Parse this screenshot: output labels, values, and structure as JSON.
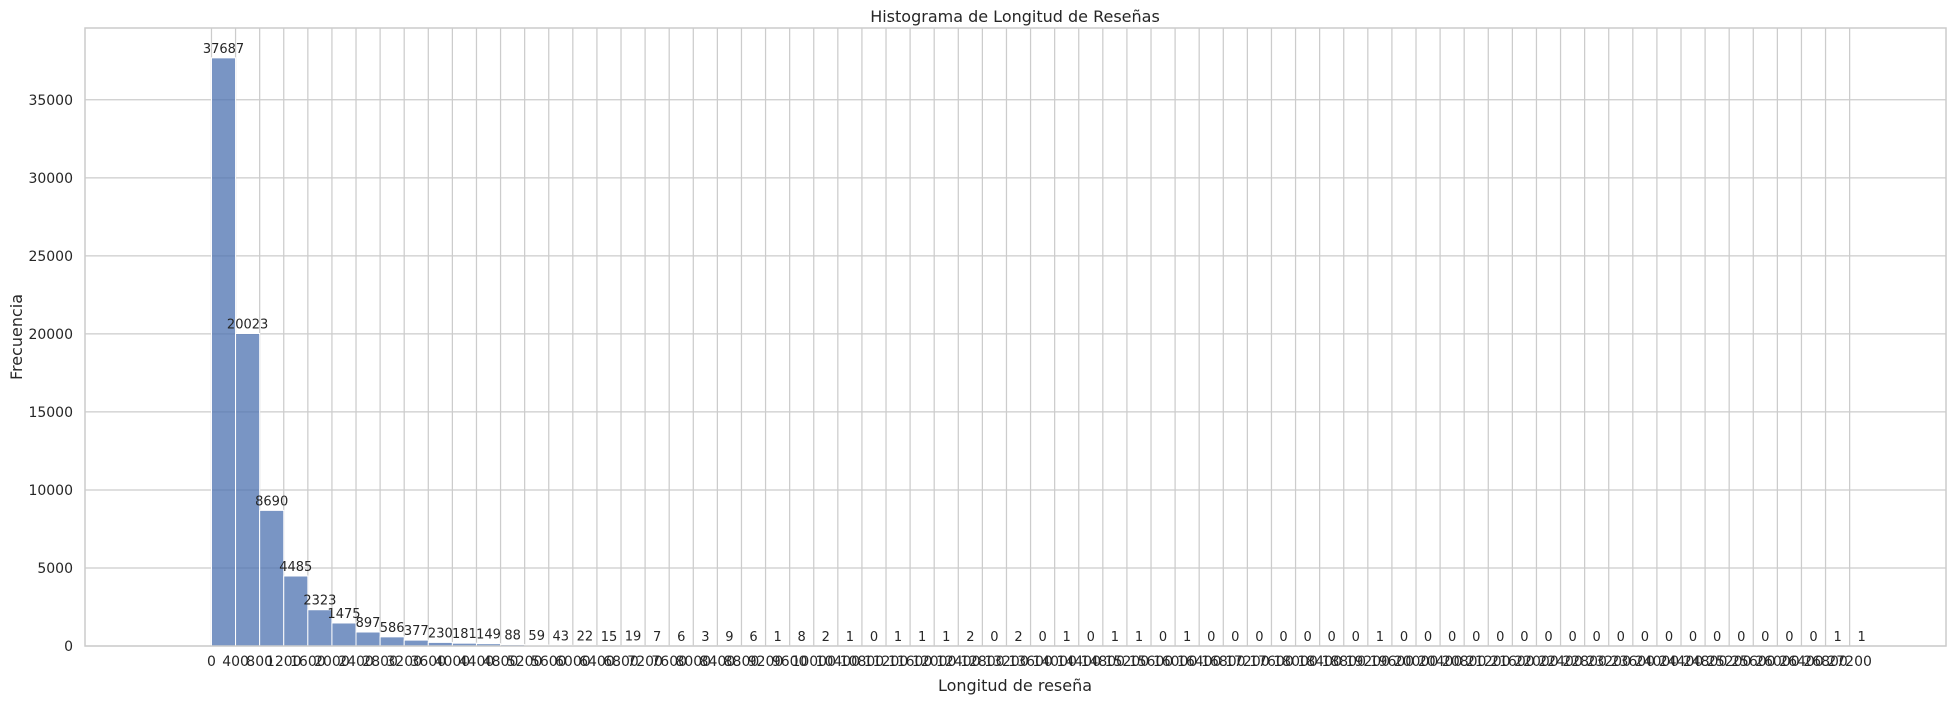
{
  "chart_data": {
    "type": "bar",
    "title": "Histograma de Longitud de Reseñas",
    "xlabel": "Longitud de reseña",
    "ylabel": "Frecuencia",
    "bin_width": 400,
    "x_ticks": [
      0,
      400,
      800,
      1200,
      1600,
      2000,
      2400,
      2800,
      3200,
      3600,
      4000,
      4400,
      4800,
      5200,
      5600,
      6000,
      6400,
      6800,
      7200,
      7600,
      8000,
      8400,
      8800,
      9200,
      9600,
      10000,
      10400,
      10800,
      11200,
      11600,
      12000,
      12400,
      12800,
      13200,
      13600,
      14000,
      14400,
      14800,
      15200,
      15600,
      16000,
      16400,
      16800,
      17200,
      17600,
      18000,
      18400,
      18800,
      19200,
      19600,
      20000,
      20400,
      20800,
      21200,
      21600,
      22000,
      22400,
      22800,
      23200,
      23600,
      24000,
      24400,
      24800,
      25200,
      25600,
      26000,
      26400,
      26800,
      27200
    ],
    "y_ticks": [
      0,
      5000,
      10000,
      15000,
      20000,
      25000,
      30000,
      35000
    ],
    "xlim": [
      -2100,
      28800
    ],
    "ylim": [
      0,
      39600
    ],
    "grid": true,
    "color": "#4c72b0",
    "values": [
      37687,
      20023,
      8690,
      4485,
      2323,
      1475,
      897,
      586,
      377,
      230,
      181,
      149,
      88,
      59,
      43,
      22,
      15,
      19,
      7,
      6,
      3,
      9,
      6,
      1,
      8,
      2,
      1,
      0,
      1,
      1,
      1,
      2,
      0,
      2,
      0,
      1,
      0,
      1,
      1,
      0,
      1,
      0,
      0,
      0,
      0,
      0,
      0,
      0,
      1,
      0,
      0,
      0,
      0,
      0,
      0,
      0,
      0,
      0,
      0,
      0,
      0,
      0,
      0,
      0,
      0,
      0,
      0,
      1,
      1
    ]
  }
}
